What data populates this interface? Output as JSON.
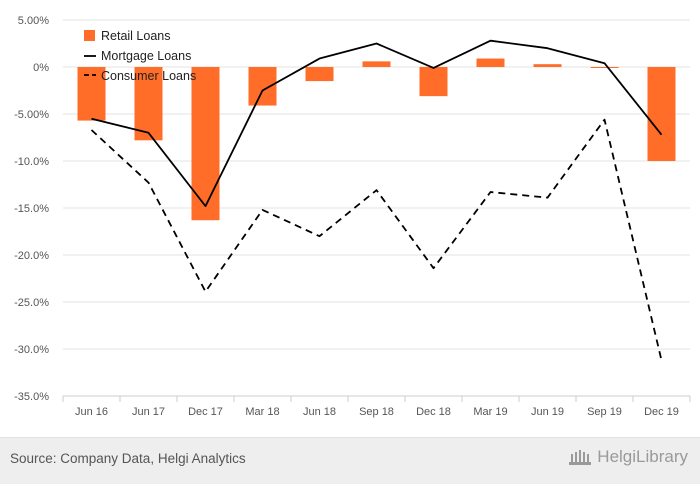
{
  "chart_data": {
    "type": "bar",
    "categories": [
      "Jun 16",
      "Jun 17",
      "Dec 17",
      "Mar 18",
      "Jun 18",
      "Sep 18",
      "Dec 18",
      "Mar 19",
      "Jun 19",
      "Sep 19",
      "Dec 19"
    ],
    "series": [
      {
        "name": "Retail Loans",
        "type": "bar",
        "color": "#ff6d29",
        "values": [
          -5.7,
          -7.8,
          -16.3,
          -4.1,
          -1.5,
          0.6,
          -3.1,
          0.9,
          0.3,
          -0.1,
          -10.0
        ]
      },
      {
        "name": "Mortgage Loans",
        "type": "line",
        "style": "solid",
        "color": "#000000",
        "values": [
          -5.5,
          -7.0,
          -14.8,
          -2.5,
          0.9,
          2.5,
          -0.1,
          2.8,
          2.0,
          0.4,
          -7.2
        ]
      },
      {
        "name": "Consumer Loans",
        "type": "line",
        "style": "dashed",
        "color": "#000000",
        "values": [
          -6.7,
          -12.3,
          -23.9,
          -15.2,
          -18.0,
          -13.1,
          -21.4,
          -13.3,
          -13.9,
          -5.6,
          -31.2
        ]
      }
    ],
    "ylim": [
      -35,
      5
    ],
    "yticks": [
      5,
      0,
      -5,
      -10,
      -15,
      -20,
      -25,
      -30,
      -35
    ],
    "ytick_labels": [
      "5.00%",
      "0%",
      "-5.00%",
      "-10.0%",
      "-15.0%",
      "-20.0%",
      "-25.0%",
      "-30.0%",
      "-35.0%"
    ],
    "grid": true,
    "legend_position": "top-left"
  },
  "footer": {
    "source": "Source: Company Data, Helgi Analytics",
    "logo": "HelgiLibrary"
  }
}
